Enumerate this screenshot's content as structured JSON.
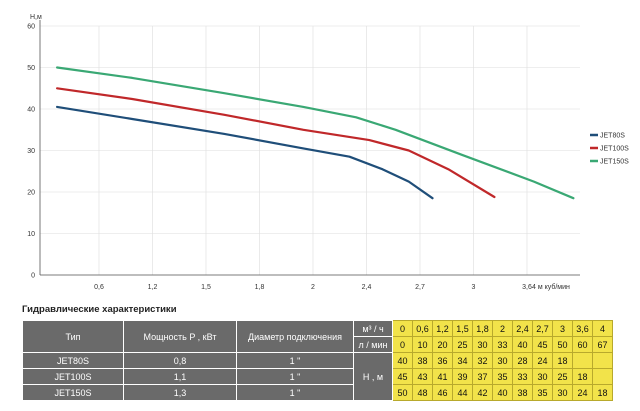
{
  "chart_data": {
    "type": "line",
    "ylabel": "Н,м",
    "xlabel": "4 м куб/мин",
    "xlim": [
      0.3,
      4.4
    ],
    "ylim": [
      0,
      60
    ],
    "x_ticks": [
      "0,6",
      "1,2",
      "1,5",
      "1,8",
      "2",
      "2,4",
      "2,7",
      "3",
      "3,6"
    ],
    "y_ticks": [
      "0",
      "10",
      "20",
      "30",
      "40",
      "50",
      "60"
    ],
    "grid": true,
    "legend_position": "right",
    "series": [
      {
        "name": "JET80S",
        "color": "#1f4e79",
        "points": [
          [
            0.43,
            40.5
          ],
          [
            1.0,
            37.6
          ],
          [
            1.7,
            34.0
          ],
          [
            2.3,
            30.5
          ],
          [
            2.65,
            28.5
          ],
          [
            2.9,
            25.5
          ],
          [
            3.1,
            22.5
          ],
          [
            3.28,
            18.5
          ]
        ]
      },
      {
        "name": "JET100S",
        "color": "#c0282a",
        "points": [
          [
            0.43,
            45
          ],
          [
            1.0,
            42.4
          ],
          [
            1.7,
            38.6
          ],
          [
            2.3,
            35.0
          ],
          [
            2.8,
            32.5
          ],
          [
            3.1,
            30.0
          ],
          [
            3.4,
            25.5
          ],
          [
            3.75,
            18.8
          ]
        ]
      },
      {
        "name": "JET150S",
        "color": "#3aa874",
        "points": [
          [
            0.43,
            50
          ],
          [
            1.0,
            47.5
          ],
          [
            1.7,
            43.8
          ],
          [
            2.3,
            40.5
          ],
          [
            2.7,
            38.0
          ],
          [
            3.0,
            35.0
          ],
          [
            3.5,
            29.0
          ],
          [
            4.05,
            22.5
          ],
          [
            4.35,
            18.5
          ]
        ]
      }
    ]
  },
  "table": {
    "title": "Гидравлические характеристики",
    "headers": {
      "type": "Тип",
      "power": "Мощность P , кВт",
      "diameter": "Диаметр подключения",
      "m3h": "м³ / ч",
      "lmin": "л / мин",
      "hm": "Н , м"
    },
    "m3h_values": [
      "0",
      "0,6",
      "1,2",
      "1,5",
      "1,8",
      "2",
      "2,4",
      "2,7",
      "3",
      "3,6",
      "4"
    ],
    "lmin_values": [
      "0",
      "10",
      "20",
      "25",
      "30",
      "33",
      "40",
      "45",
      "50",
      "60",
      "67"
    ],
    "rows": [
      {
        "type": "JET80S",
        "power": "0,8",
        "diameter": "1 \"",
        "h": [
          "40",
          "38",
          "36",
          "34",
          "32",
          "30",
          "28",
          "24",
          "18",
          "",
          ""
        ]
      },
      {
        "type": "JET100S",
        "power": "1,1",
        "diameter": "1 \"",
        "h": [
          "45",
          "43",
          "41",
          "39",
          "37",
          "35",
          "33",
          "30",
          "25",
          "18",
          ""
        ]
      },
      {
        "type": "JET150S",
        "power": "1,3",
        "diameter": "1 \"",
        "h": [
          "50",
          "48",
          "46",
          "44",
          "42",
          "40",
          "38",
          "35",
          "30",
          "24",
          "18"
        ]
      }
    ]
  }
}
